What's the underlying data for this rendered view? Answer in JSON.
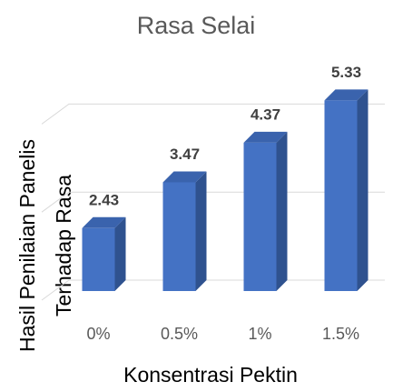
{
  "chart_data": {
    "type": "bar3d",
    "title": "Rasa Selai",
    "xlabel": "Konsentrasi Pektin",
    "ylabel": [
      "Hasil Penilaian Panelis",
      "Terhadap Rasa"
    ],
    "categories": [
      "0%",
      "0.5%",
      "1%",
      "1.5%"
    ],
    "values": [
      2.43,
      3.47,
      4.37,
      5.33
    ],
    "color": "#4472c4",
    "ylim": [
      1,
      6
    ],
    "yticks": [
      1,
      3,
      5
    ],
    "grid": true
  }
}
